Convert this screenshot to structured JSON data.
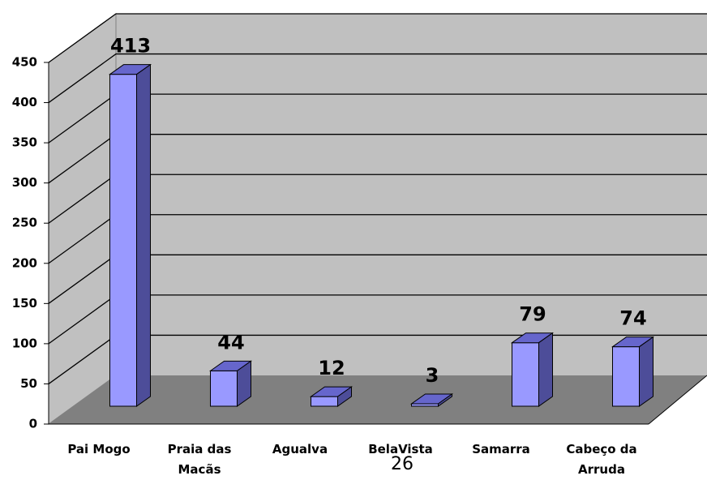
{
  "chart_data": {
    "type": "bar3d",
    "categories": [
      "Pai Mogo",
      "Praia das\nMacãs",
      "Agualva",
      "BelaVista",
      "Samarra",
      "Cabeço da\nArruda"
    ],
    "values": [
      413,
      44,
      12,
      3,
      79,
      74
    ],
    "color": "#9999ff",
    "ylim": [
      0,
      450
    ],
    "yticks": [
      0,
      50,
      100,
      150,
      200,
      250,
      300,
      350,
      400,
      450
    ],
    "grid": true
  },
  "page_number": "26"
}
